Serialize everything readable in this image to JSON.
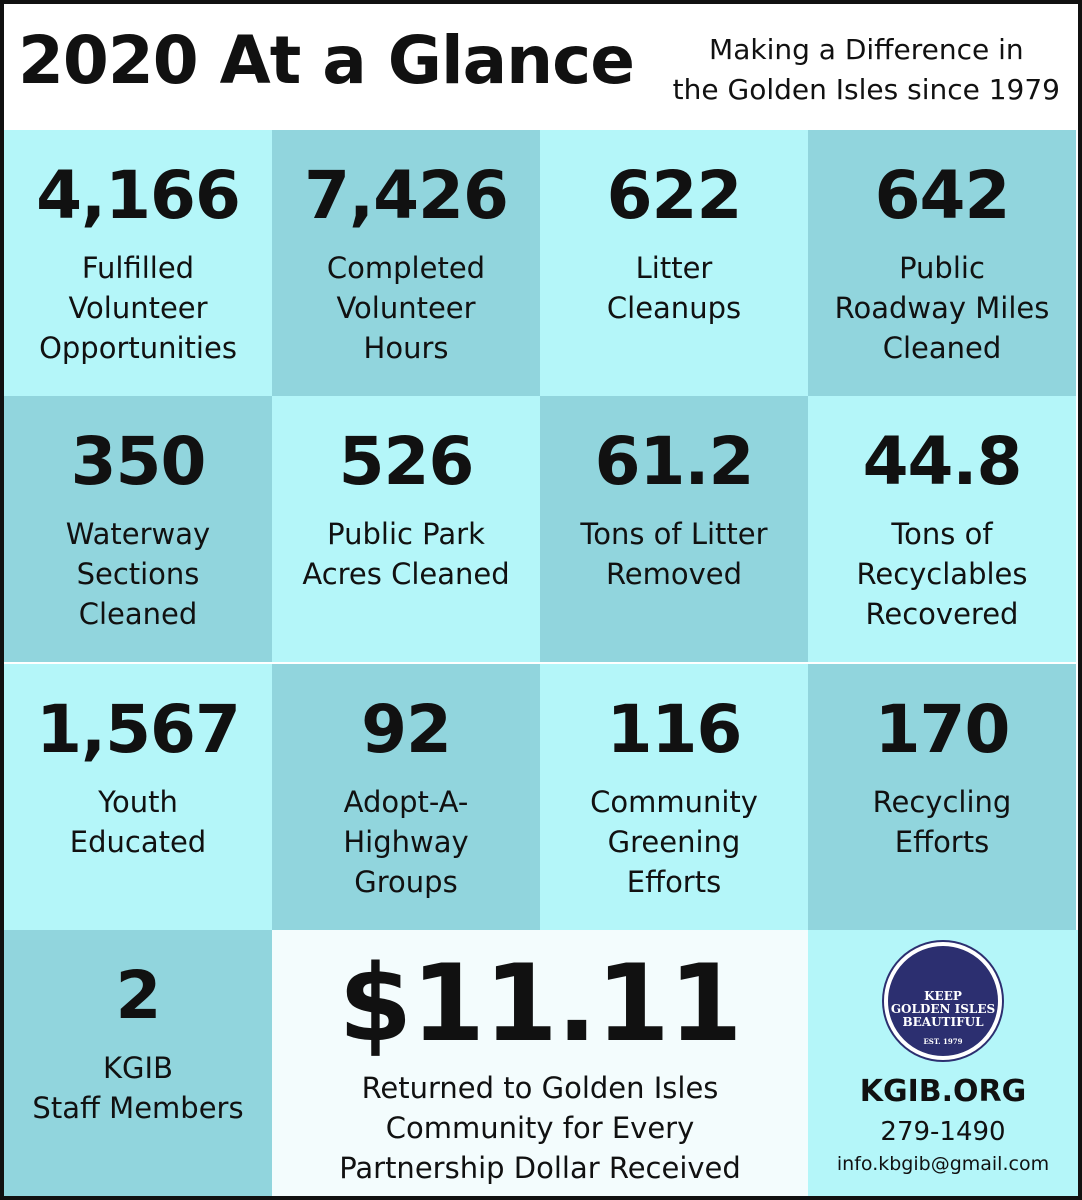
{
  "header": {
    "title": "2020 At a Glance",
    "tagline": [
      "Making a Difference in",
      "the Golden Isles since 1979"
    ]
  },
  "stats": [
    {
      "number": "4,166",
      "label": [
        "Fulfilled",
        "Volunteer",
        "Opportunities"
      ]
    },
    {
      "number": "7,426",
      "label": [
        "Completed",
        "Volunteer",
        "Hours"
      ]
    },
    {
      "number": "622",
      "label": [
        "Litter",
        "Cleanups"
      ]
    },
    {
      "number": "642",
      "label": [
        "Public",
        "Roadway Miles",
        "Cleaned"
      ]
    },
    {
      "number": "350",
      "label": [
        "Waterway",
        "Sections",
        "Cleaned"
      ]
    },
    {
      "number": "526",
      "label": [
        "Public Park",
        "Acres Cleaned"
      ]
    },
    {
      "number": "61.2",
      "label": [
        "Tons of Litter",
        "Removed"
      ]
    },
    {
      "number": "44.8",
      "label": [
        "Tons of",
        "Recyclables",
        "Recovered"
      ]
    },
    {
      "number": "1,567",
      "label": [
        "Youth",
        "Educated"
      ]
    },
    {
      "number": "92",
      "label": [
        "Adopt-A-",
        "Highway",
        "Groups"
      ]
    },
    {
      "number": "116",
      "label": [
        "Community",
        "Greening",
        "Efforts"
      ]
    },
    {
      "number": "170",
      "label": [
        "Recycling",
        "Efforts"
      ]
    },
    {
      "number": "2",
      "label": [
        "KGIB",
        "Staff Members"
      ]
    }
  ],
  "return": {
    "number": "$11.11",
    "label": [
      "Returned to Golden Isles",
      "Community for Every",
      "Partnership Dollar Received"
    ]
  },
  "contact": {
    "logo": [
      "KEEP",
      "GOLDEN ISLES",
      "BEAUTIFUL",
      "EST. 1979"
    ],
    "website": "KGIB.ORG",
    "phone": "279-1490",
    "email": "info.kbgib@gmail.com"
  }
}
